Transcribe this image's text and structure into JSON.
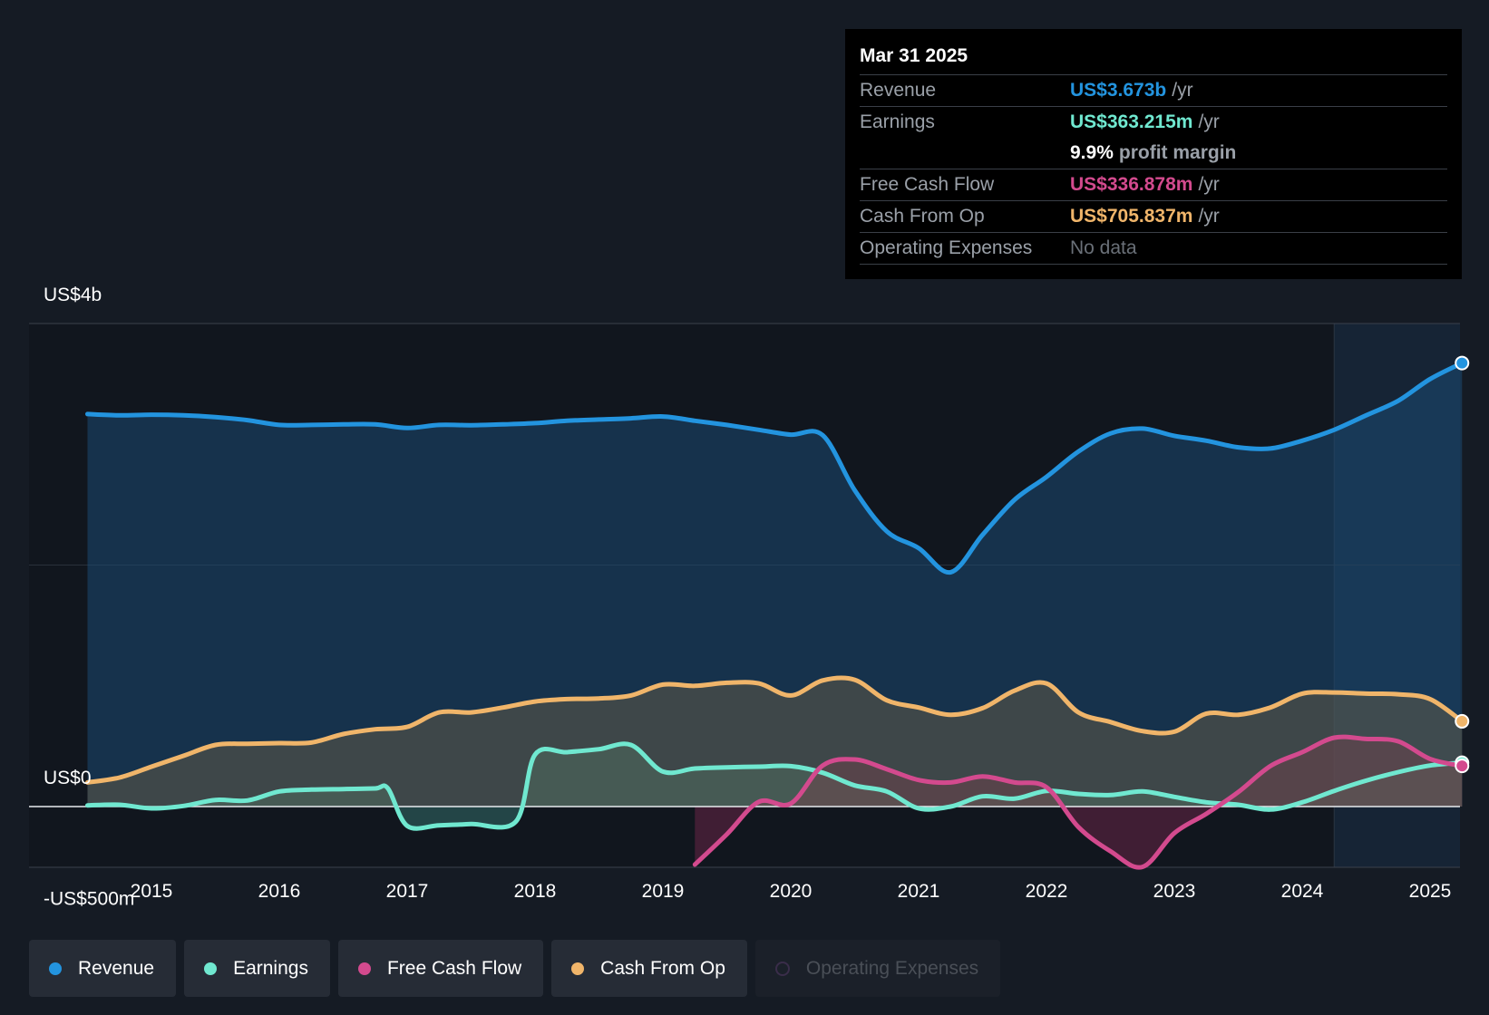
{
  "chart_data": {
    "type": "line",
    "title": "",
    "y_labels": [
      "US$4b",
      "US$0",
      "-US$500m"
    ],
    "ylim": [
      -500,
      4000
    ],
    "x_ticks": [
      "2015",
      "2016",
      "2017",
      "2018",
      "2019",
      "2020",
      "2021",
      "2022",
      "2023",
      "2024",
      "2025"
    ],
    "series": [
      {
        "name": "Revenue",
        "color": "#2394df",
        "points": [
          [
            2014.5,
            3250
          ],
          [
            2014.75,
            3240
          ],
          [
            2015.0,
            3245
          ],
          [
            2015.25,
            3240
          ],
          [
            2015.5,
            3225
          ],
          [
            2015.75,
            3200
          ],
          [
            2016.0,
            3160
          ],
          [
            2016.25,
            3160
          ],
          [
            2016.5,
            3165
          ],
          [
            2016.75,
            3165
          ],
          [
            2017.0,
            3135
          ],
          [
            2017.25,
            3160
          ],
          [
            2017.5,
            3158
          ],
          [
            2017.75,
            3165
          ],
          [
            2018.0,
            3175
          ],
          [
            2018.25,
            3195
          ],
          [
            2018.5,
            3205
          ],
          [
            2018.75,
            3215
          ],
          [
            2019.0,
            3230
          ],
          [
            2019.25,
            3195
          ],
          [
            2019.5,
            3160
          ],
          [
            2019.75,
            3120
          ],
          [
            2020.0,
            3080
          ],
          [
            2020.25,
            3075
          ],
          [
            2020.5,
            2620
          ],
          [
            2020.75,
            2280
          ],
          [
            2021.0,
            2140
          ],
          [
            2021.25,
            1940
          ],
          [
            2021.5,
            2250
          ],
          [
            2021.75,
            2540
          ],
          [
            2022.0,
            2730
          ],
          [
            2022.25,
            2940
          ],
          [
            2022.5,
            3090
          ],
          [
            2022.75,
            3130
          ],
          [
            2023.0,
            3070
          ],
          [
            2023.25,
            3030
          ],
          [
            2023.5,
            2975
          ],
          [
            2023.75,
            2965
          ],
          [
            2024.0,
            3030
          ],
          [
            2024.25,
            3120
          ],
          [
            2024.5,
            3240
          ],
          [
            2024.75,
            3360
          ],
          [
            2025.0,
            3540
          ],
          [
            2025.25,
            3673
          ]
        ]
      },
      {
        "name": "Earnings",
        "color": "#70e8d0",
        "points": [
          [
            2014.5,
            10
          ],
          [
            2014.75,
            15
          ],
          [
            2015.0,
            -15
          ],
          [
            2015.25,
            5
          ],
          [
            2015.5,
            55
          ],
          [
            2015.75,
            50
          ],
          [
            2016.0,
            125
          ],
          [
            2016.25,
            140
          ],
          [
            2016.5,
            145
          ],
          [
            2016.75,
            150
          ],
          [
            2016.85,
            150
          ],
          [
            2017.0,
            -160
          ],
          [
            2017.25,
            -155
          ],
          [
            2017.5,
            -145
          ],
          [
            2017.85,
            -125
          ],
          [
            2018.0,
            430
          ],
          [
            2018.25,
            450
          ],
          [
            2018.5,
            475
          ],
          [
            2018.75,
            510
          ],
          [
            2019.0,
            290
          ],
          [
            2019.25,
            315
          ],
          [
            2019.5,
            325
          ],
          [
            2019.75,
            330
          ],
          [
            2020.0,
            335
          ],
          [
            2020.25,
            280
          ],
          [
            2020.5,
            175
          ],
          [
            2020.75,
            125
          ],
          [
            2021.0,
            -15
          ],
          [
            2021.25,
            0
          ],
          [
            2021.5,
            85
          ],
          [
            2021.75,
            65
          ],
          [
            2022.0,
            130
          ],
          [
            2022.25,
            105
          ],
          [
            2022.5,
            95
          ],
          [
            2022.75,
            125
          ],
          [
            2023.0,
            80
          ],
          [
            2023.25,
            35
          ],
          [
            2023.5,
            15
          ],
          [
            2023.75,
            -25
          ],
          [
            2024.0,
            35
          ],
          [
            2024.25,
            130
          ],
          [
            2024.5,
            215
          ],
          [
            2024.75,
            285
          ],
          [
            2025.0,
            340
          ],
          [
            2025.25,
            363
          ]
        ]
      },
      {
        "name": "Free Cash Flow",
        "color": "#d34a8e",
        "points": [
          [
            2019.25,
            -480
          ],
          [
            2019.5,
            -230
          ],
          [
            2019.75,
            40
          ],
          [
            2020.0,
            25
          ],
          [
            2020.25,
            340
          ],
          [
            2020.5,
            390
          ],
          [
            2020.75,
            310
          ],
          [
            2021.0,
            220
          ],
          [
            2021.25,
            200
          ],
          [
            2021.5,
            250
          ],
          [
            2021.75,
            200
          ],
          [
            2022.0,
            160
          ],
          [
            2022.25,
            -170
          ],
          [
            2022.5,
            -370
          ],
          [
            2022.75,
            -500
          ],
          [
            2023.0,
            -220
          ],
          [
            2023.25,
            -60
          ],
          [
            2023.5,
            120
          ],
          [
            2023.75,
            335
          ],
          [
            2024.0,
            450
          ],
          [
            2024.25,
            570
          ],
          [
            2024.5,
            560
          ],
          [
            2024.75,
            540
          ],
          [
            2025.0,
            395
          ],
          [
            2025.25,
            337
          ]
        ]
      },
      {
        "name": "Cash From Op",
        "color": "#f0b56a",
        "points": [
          [
            2014.5,
            200
          ],
          [
            2014.75,
            240
          ],
          [
            2015.0,
            330
          ],
          [
            2015.25,
            420
          ],
          [
            2015.5,
            510
          ],
          [
            2015.75,
            520
          ],
          [
            2016.0,
            525
          ],
          [
            2016.25,
            530
          ],
          [
            2016.5,
            600
          ],
          [
            2016.75,
            640
          ],
          [
            2017.0,
            660
          ],
          [
            2017.25,
            780
          ],
          [
            2017.5,
            780
          ],
          [
            2017.75,
            820
          ],
          [
            2018.0,
            870
          ],
          [
            2018.25,
            890
          ],
          [
            2018.5,
            895
          ],
          [
            2018.75,
            920
          ],
          [
            2019.0,
            1010
          ],
          [
            2019.25,
            1000
          ],
          [
            2019.5,
            1025
          ],
          [
            2019.75,
            1020
          ],
          [
            2020.0,
            920
          ],
          [
            2020.25,
            1045
          ],
          [
            2020.5,
            1050
          ],
          [
            2020.75,
            880
          ],
          [
            2021.0,
            820
          ],
          [
            2021.25,
            760
          ],
          [
            2021.5,
            815
          ],
          [
            2021.75,
            960
          ],
          [
            2022.0,
            1020
          ],
          [
            2022.25,
            780
          ],
          [
            2022.5,
            700
          ],
          [
            2022.75,
            625
          ],
          [
            2023.0,
            620
          ],
          [
            2023.25,
            770
          ],
          [
            2023.5,
            760
          ],
          [
            2023.75,
            820
          ],
          [
            2024.0,
            935
          ],
          [
            2024.25,
            945
          ],
          [
            2024.5,
            935
          ],
          [
            2024.75,
            930
          ],
          [
            2025.0,
            890
          ],
          [
            2025.25,
            706
          ]
        ]
      }
    ],
    "forecast_start": 2024.25,
    "tooltip": {
      "date": "Mar 31 2025",
      "rows": [
        {
          "label": "Revenue",
          "value": "US$3.673b",
          "unit": "/yr",
          "color": "#2394df"
        },
        {
          "label": "Earnings",
          "value": "US$363.215m",
          "unit": "/yr",
          "color": "#70e8d0"
        },
        {
          "label": "",
          "value": "9.9%",
          "unit": "profit margin",
          "color": "#ffffff"
        },
        {
          "label": "Free Cash Flow",
          "value": "US$336.878m",
          "unit": "/yr",
          "color": "#d34a8e"
        },
        {
          "label": "Cash From Op",
          "value": "US$705.837m",
          "unit": "/yr",
          "color": "#f0b56a"
        },
        {
          "label": "Operating Expenses",
          "value": "No data",
          "unit": "",
          "color": "#6a7078"
        }
      ]
    },
    "legend": [
      {
        "label": "Revenue",
        "color": "#2394df",
        "active": true
      },
      {
        "label": "Earnings",
        "color": "#70e8d0",
        "active": true
      },
      {
        "label": "Free Cash Flow",
        "color": "#d34a8e",
        "active": true
      },
      {
        "label": "Cash From Op",
        "color": "#f0b56a",
        "active": true
      },
      {
        "label": "Operating Expenses",
        "color": "#3a2d4a",
        "active": false
      }
    ]
  }
}
